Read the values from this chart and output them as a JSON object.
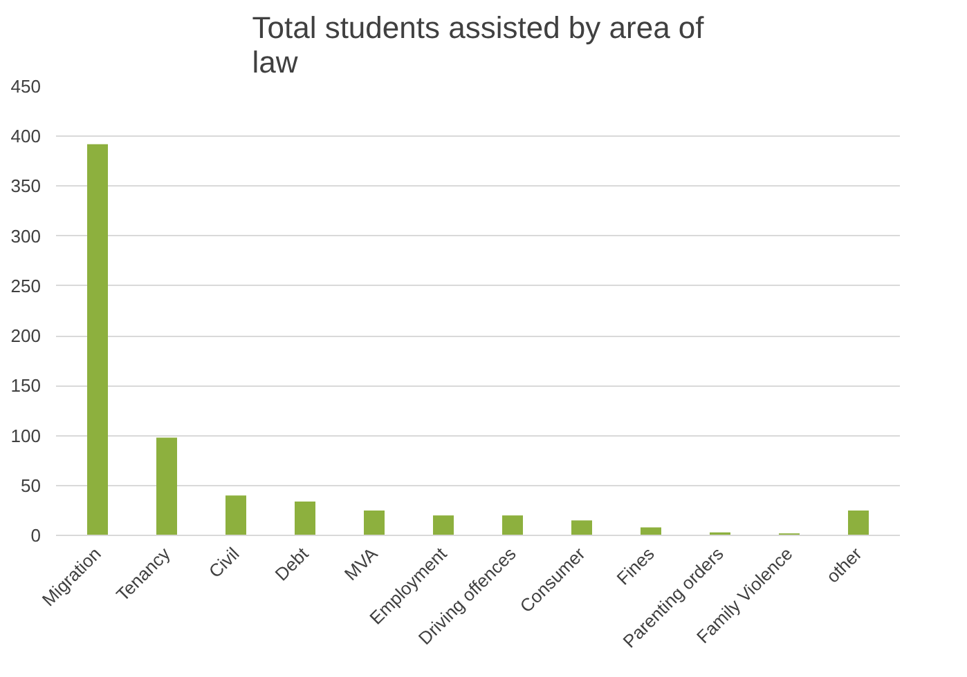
{
  "chart_data": {
    "type": "bar",
    "title": "Total students assisted by area of\nlaw",
    "categories": [
      "Migration",
      "Tenancy",
      "Civil",
      "Debt",
      "MVA",
      "Employment",
      "Driving offences",
      "Consumer",
      "Fines",
      "Parenting orders",
      "Family Violence",
      "other"
    ],
    "values": [
      392,
      98,
      40,
      34,
      25,
      20,
      20,
      15,
      8,
      3,
      2,
      25
    ],
    "color": "#8db03e",
    "ylim": [
      0,
      450
    ],
    "yticks": [
      0,
      50,
      100,
      150,
      200,
      250,
      300,
      350,
      400,
      450
    ],
    "grid": "y"
  }
}
